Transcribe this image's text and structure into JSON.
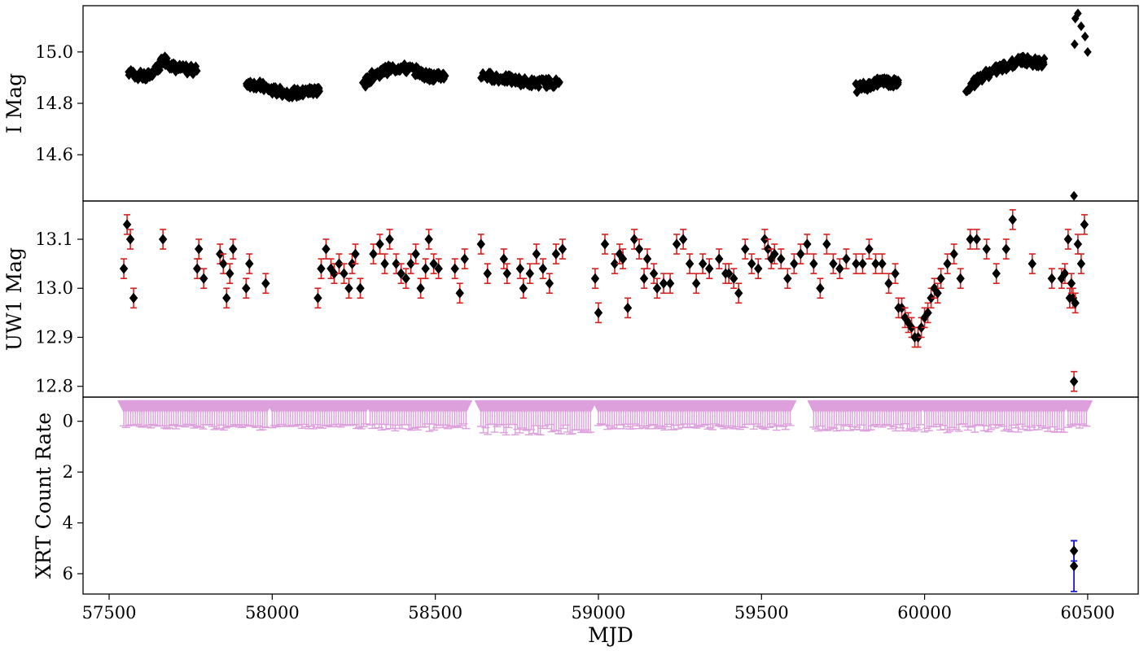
{
  "figure": {
    "xlabel": "MJD",
    "xlim": [
      57420,
      60655
    ],
    "xticks": [
      57500,
      58000,
      58500,
      59000,
      59500,
      60000,
      60500
    ],
    "xtick_labels": [
      "57500",
      "58000",
      "58500",
      "59000",
      "59500",
      "60000",
      "60500"
    ]
  },
  "chart_data": [
    {
      "type": "scatter",
      "panel": "top",
      "ylabel": "I Mag",
      "ylim": [
        15.18,
        14.42
      ],
      "y_inverted": true,
      "yticks": [
        14.6,
        14.8,
        15.0
      ],
      "ytick_labels": [
        "14.6",
        "14.8",
        "15.0"
      ],
      "marker": "diamond",
      "color": "#000000",
      "segments": [
        {
          "x": [
            57560,
            57615,
            57650,
            57670,
            57700,
            57740,
            57770
          ],
          "y": [
            14.92,
            14.9,
            14.94,
            14.97,
            14.94,
            14.93,
            14.93
          ]
        },
        {
          "x": [
            57920,
            57960,
            58000,
            58050,
            58090,
            58120,
            58145
          ],
          "y": [
            14.88,
            14.87,
            14.85,
            14.84,
            14.84,
            14.85,
            14.85
          ]
        },
        {
          "x": [
            58280,
            58310,
            58350,
            58390,
            58430,
            58470,
            58500,
            58530
          ],
          "y": [
            14.87,
            14.91,
            14.93,
            14.94,
            14.93,
            14.91,
            14.9,
            14.91
          ]
        },
        {
          "x": [
            58640,
            58690,
            58740,
            58790,
            58840,
            58880
          ],
          "y": [
            14.91,
            14.9,
            14.89,
            14.88,
            14.88,
            14.88
          ]
        },
        {
          "x": [
            59790,
            59830,
            59870,
            59900,
            59920
          ],
          "y": [
            14.86,
            14.87,
            14.89,
            14.88,
            14.88
          ]
        },
        {
          "x": [
            60130,
            60180,
            60220,
            60260,
            60300,
            60340,
            60370
          ],
          "y": [
            14.86,
            14.91,
            14.93,
            14.95,
            14.97,
            14.96,
            14.96
          ]
        }
      ],
      "points": [
        {
          "x": 60458,
          "y": 14.44
        },
        {
          "x": 60460,
          "y": 15.03
        },
        {
          "x": 60462,
          "y": 15.13
        },
        {
          "x": 60470,
          "y": 15.15
        },
        {
          "x": 60480,
          "y": 15.1
        },
        {
          "x": 60492,
          "y": 15.06
        },
        {
          "x": 60500,
          "y": 15.0
        }
      ]
    },
    {
      "type": "scatter",
      "panel": "middle",
      "ylabel": "UW1 Mag",
      "ylim": [
        13.178,
        12.778
      ],
      "y_inverted": true,
      "yticks": [
        12.8,
        12.9,
        13.0,
        13.1
      ],
      "ytick_labels": [
        "12.8",
        "12.9",
        "13.0",
        "13.1"
      ],
      "marker": "diamond",
      "color": "#000000",
      "errorbar_color": "#d62020",
      "error": 0.02,
      "points": [
        {
          "x": 57545,
          "y": 13.04
        },
        {
          "x": 57555,
          "y": 13.13
        },
        {
          "x": 57565,
          "y": 13.1
        },
        {
          "x": 57575,
          "y": 12.98
        },
        {
          "x": 57665,
          "y": 13.1
        },
        {
          "x": 57770,
          "y": 13.04
        },
        {
          "x": 57775,
          "y": 13.08
        },
        {
          "x": 57790,
          "y": 13.02
        },
        {
          "x": 57840,
          "y": 13.07
        },
        {
          "x": 57850,
          "y": 13.05
        },
        {
          "x": 57860,
          "y": 12.98
        },
        {
          "x": 57870,
          "y": 13.03
        },
        {
          "x": 57880,
          "y": 13.08
        },
        {
          "x": 57920,
          "y": 13.0
        },
        {
          "x": 57930,
          "y": 13.05
        },
        {
          "x": 57980,
          "y": 13.01
        },
        {
          "x": 58140,
          "y": 12.98
        },
        {
          "x": 58150,
          "y": 13.04
        },
        {
          "x": 58165,
          "y": 13.08
        },
        {
          "x": 58180,
          "y": 13.04
        },
        {
          "x": 58190,
          "y": 13.03
        },
        {
          "x": 58205,
          "y": 13.05
        },
        {
          "x": 58220,
          "y": 13.03
        },
        {
          "x": 58235,
          "y": 13.0
        },
        {
          "x": 58245,
          "y": 13.05
        },
        {
          "x": 58255,
          "y": 13.07
        },
        {
          "x": 58270,
          "y": 13.0
        },
        {
          "x": 58310,
          "y": 13.07
        },
        {
          "x": 58330,
          "y": 13.09
        },
        {
          "x": 58345,
          "y": 13.05
        },
        {
          "x": 58360,
          "y": 13.1
        },
        {
          "x": 58380,
          "y": 13.05
        },
        {
          "x": 58395,
          "y": 13.03
        },
        {
          "x": 58410,
          "y": 13.02
        },
        {
          "x": 58425,
          "y": 13.05
        },
        {
          "x": 58440,
          "y": 13.07
        },
        {
          "x": 58455,
          "y": 13.0
        },
        {
          "x": 58470,
          "y": 13.04
        },
        {
          "x": 58480,
          "y": 13.1
        },
        {
          "x": 58495,
          "y": 13.05
        },
        {
          "x": 58510,
          "y": 13.04
        },
        {
          "x": 58560,
          "y": 13.04
        },
        {
          "x": 58575,
          "y": 12.99
        },
        {
          "x": 58590,
          "y": 13.06
        },
        {
          "x": 58640,
          "y": 13.09
        },
        {
          "x": 58660,
          "y": 13.03
        },
        {
          "x": 58710,
          "y": 13.06
        },
        {
          "x": 58720,
          "y": 13.03
        },
        {
          "x": 58760,
          "y": 13.04
        },
        {
          "x": 58770,
          "y": 13.0
        },
        {
          "x": 58790,
          "y": 13.03
        },
        {
          "x": 58810,
          "y": 13.07
        },
        {
          "x": 58830,
          "y": 13.04
        },
        {
          "x": 58850,
          "y": 13.01
        },
        {
          "x": 58870,
          "y": 13.07
        },
        {
          "x": 58890,
          "y": 13.08
        },
        {
          "x": 58990,
          "y": 13.02
        },
        {
          "x": 59000,
          "y": 12.95
        },
        {
          "x": 59020,
          "y": 13.09
        },
        {
          "x": 59050,
          "y": 13.05
        },
        {
          "x": 59065,
          "y": 13.07
        },
        {
          "x": 59075,
          "y": 13.06
        },
        {
          "x": 59090,
          "y": 12.96
        },
        {
          "x": 59110,
          "y": 13.1
        },
        {
          "x": 59125,
          "y": 13.08
        },
        {
          "x": 59140,
          "y": 13.02
        },
        {
          "x": 59150,
          "y": 13.06
        },
        {
          "x": 59170,
          "y": 13.03
        },
        {
          "x": 59180,
          "y": 13.0
        },
        {
          "x": 59200,
          "y": 13.01
        },
        {
          "x": 59220,
          "y": 13.01
        },
        {
          "x": 59240,
          "y": 13.09
        },
        {
          "x": 59260,
          "y": 13.1
        },
        {
          "x": 59280,
          "y": 13.05
        },
        {
          "x": 59300,
          "y": 13.01
        },
        {
          "x": 59320,
          "y": 13.05
        },
        {
          "x": 59340,
          "y": 13.04
        },
        {
          "x": 59370,
          "y": 13.06
        },
        {
          "x": 59390,
          "y": 13.03
        },
        {
          "x": 59400,
          "y": 13.03
        },
        {
          "x": 59415,
          "y": 13.02
        },
        {
          "x": 59430,
          "y": 12.99
        },
        {
          "x": 59450,
          "y": 13.08
        },
        {
          "x": 59470,
          "y": 13.05
        },
        {
          "x": 59490,
          "y": 13.04
        },
        {
          "x": 59510,
          "y": 13.1
        },
        {
          "x": 59520,
          "y": 13.08
        },
        {
          "x": 59530,
          "y": 13.06
        },
        {
          "x": 59540,
          "y": 13.07
        },
        {
          "x": 59560,
          "y": 13.06
        },
        {
          "x": 59580,
          "y": 13.02
        },
        {
          "x": 59600,
          "y": 13.05
        },
        {
          "x": 59620,
          "y": 13.07
        },
        {
          "x": 59640,
          "y": 13.09
        },
        {
          "x": 59660,
          "y": 13.05
        },
        {
          "x": 59680,
          "y": 13.0
        },
        {
          "x": 59700,
          "y": 13.09
        },
        {
          "x": 59720,
          "y": 13.05
        },
        {
          "x": 59740,
          "y": 13.04
        },
        {
          "x": 59760,
          "y": 13.06
        },
        {
          "x": 59790,
          "y": 13.05
        },
        {
          "x": 59810,
          "y": 13.05
        },
        {
          "x": 59830,
          "y": 13.08
        },
        {
          "x": 59850,
          "y": 13.05
        },
        {
          "x": 59870,
          "y": 13.05
        },
        {
          "x": 59890,
          "y": 13.01
        },
        {
          "x": 59910,
          "y": 13.03
        },
        {
          "x": 59920,
          "y": 12.96
        },
        {
          "x": 59930,
          "y": 12.96
        },
        {
          "x": 59940,
          "y": 12.94
        },
        {
          "x": 59950,
          "y": 12.93
        },
        {
          "x": 59960,
          "y": 12.92
        },
        {
          "x": 59970,
          "y": 12.9
        },
        {
          "x": 59980,
          "y": 12.9
        },
        {
          "x": 59990,
          "y": 12.92
        },
        {
          "x": 60000,
          "y": 12.94
        },
        {
          "x": 60010,
          "y": 12.95
        },
        {
          "x": 60020,
          "y": 12.98
        },
        {
          "x": 60030,
          "y": 13.0
        },
        {
          "x": 60040,
          "y": 12.99
        },
        {
          "x": 60050,
          "y": 13.02
        },
        {
          "x": 60070,
          "y": 13.05
        },
        {
          "x": 60090,
          "y": 13.07
        },
        {
          "x": 60110,
          "y": 13.02
        },
        {
          "x": 60140,
          "y": 13.1
        },
        {
          "x": 60160,
          "y": 13.1
        },
        {
          "x": 60190,
          "y": 13.08
        },
        {
          "x": 60220,
          "y": 13.03
        },
        {
          "x": 60250,
          "y": 13.08
        },
        {
          "x": 60270,
          "y": 13.14
        },
        {
          "x": 60330,
          "y": 13.05
        },
        {
          "x": 60390,
          "y": 13.02
        },
        {
          "x": 60420,
          "y": 13.02
        },
        {
          "x": 60430,
          "y": 13.03
        },
        {
          "x": 60440,
          "y": 13.1
        },
        {
          "x": 60445,
          "y": 12.98
        },
        {
          "x": 60450,
          "y": 13.01
        },
        {
          "x": 60455,
          "y": 12.98
        },
        {
          "x": 60458,
          "y": 12.81
        },
        {
          "x": 60462,
          "y": 12.97
        },
        {
          "x": 60470,
          "y": 13.09
        },
        {
          "x": 60480,
          "y": 13.05
        },
        {
          "x": 60490,
          "y": 13.13
        }
      ]
    },
    {
      "type": "scatter",
      "panel": "bottom",
      "ylabel": "XRT Count Rate",
      "ylim": [
        -0.95,
        6.8
      ],
      "yticks": [
        0,
        2,
        4,
        6
      ],
      "ytick_labels": [
        "0",
        "2",
        "4",
        "6"
      ],
      "detections": {
        "marker": "diamond",
        "color": "#000000",
        "errorbar_color": "#1a1ad6",
        "points": [
          {
            "x": 60458,
            "y": 5.7,
            "err": 1.0
          },
          {
            "x": 60458,
            "y": 5.1,
            "err": 0.4
          }
        ]
      },
      "upper_limits": {
        "marker": "triangle-down",
        "color": "#dda0dd",
        "arrow_y": -0.6,
        "coverage": [
          [
            57545,
            57600
          ],
          [
            57600,
            57760
          ],
          [
            57760,
            57990
          ],
          [
            58000,
            58290
          ],
          [
            58300,
            58600
          ],
          [
            58640,
            58980
          ],
          [
            59000,
            59590
          ],
          [
            59660,
            59990
          ],
          [
            60000,
            60430
          ],
          [
            60440,
            60500
          ]
        ],
        "cap_heights": [
          0.2,
          0.2,
          0.25,
          0.2,
          0.3,
          0.45,
          0.25,
          0.3,
          0.35,
          0.2
        ]
      }
    }
  ]
}
